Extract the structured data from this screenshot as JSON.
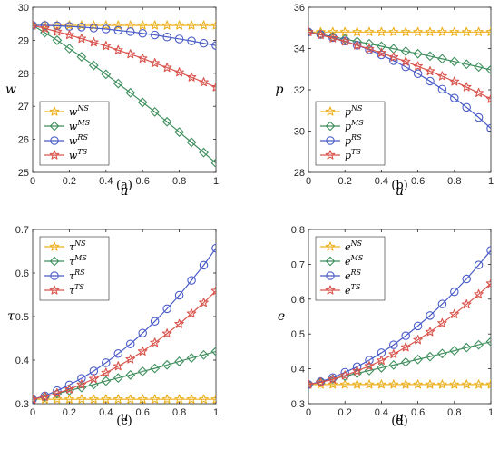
{
  "chart_data": [
    {
      "type": "line",
      "caption": "(a)",
      "xlabel": "u",
      "ylabel": "w",
      "xlim": [
        0,
        1
      ],
      "ylim": [
        25,
        30
      ],
      "xticks": [
        "0",
        "0.2",
        "0.4",
        "0.6",
        "0.8",
        "1"
      ],
      "yticks": [
        "25",
        "26",
        "27",
        "28",
        "29",
        "30"
      ],
      "legend": "bottom-left",
      "x": [
        0,
        0.0667,
        0.1333,
        0.2,
        0.2667,
        0.3333,
        0.4,
        0.4667,
        0.5333,
        0.6,
        0.6667,
        0.7333,
        0.8,
        0.8667,
        0.9333,
        1
      ],
      "series": [
        {
          "name": "w",
          "sup": "NS",
          "color": "#EDB120",
          "marker": "star",
          "values": [
            29.45,
            29.45,
            29.45,
            29.45,
            29.45,
            29.45,
            29.45,
            29.45,
            29.45,
            29.45,
            29.45,
            29.45,
            29.45,
            29.45,
            29.45,
            29.45
          ]
        },
        {
          "name": "w",
          "sup": "MS",
          "color": "#3F8F5E",
          "marker": "diamond",
          "values": [
            29.45,
            29.23,
            29.0,
            28.75,
            28.5,
            28.24,
            27.97,
            27.69,
            27.41,
            27.12,
            26.83,
            26.53,
            26.22,
            25.91,
            25.6,
            25.28
          ]
        },
        {
          "name": "w",
          "sup": "RS",
          "color": "#4A5CC7",
          "marker": "circle",
          "values": [
            29.45,
            29.45,
            29.44,
            29.42,
            29.4,
            29.37,
            29.34,
            29.3,
            29.26,
            29.21,
            29.16,
            29.1,
            29.04,
            28.98,
            28.91,
            28.84
          ]
        },
        {
          "name": "w",
          "sup": "TS",
          "color": "#D9544D",
          "marker": "star",
          "values": [
            29.45,
            29.36,
            29.26,
            29.16,
            29.05,
            28.94,
            28.83,
            28.7,
            28.58,
            28.45,
            28.31,
            28.17,
            28.03,
            27.88,
            27.73,
            27.58
          ]
        }
      ]
    },
    {
      "type": "line",
      "caption": "(b)",
      "xlabel": "u",
      "ylabel": "p",
      "xlim": [
        0,
        1
      ],
      "ylim": [
        28,
        36
      ],
      "xticks": [
        "0",
        "0.2",
        "0.4",
        "0.6",
        "0.8",
        "1"
      ],
      "yticks": [
        "28",
        "30",
        "32",
        "34",
        "36"
      ],
      "legend": "bottom-left",
      "x": [
        0,
        0.0667,
        0.1333,
        0.2,
        0.2667,
        0.3333,
        0.4,
        0.4667,
        0.5333,
        0.6,
        0.6667,
        0.7333,
        0.8,
        0.8667,
        0.9333,
        1
      ],
      "series": [
        {
          "name": "p",
          "sup": "NS",
          "color": "#EDB120",
          "marker": "star",
          "values": [
            34.8,
            34.8,
            34.8,
            34.8,
            34.8,
            34.8,
            34.8,
            34.8,
            34.8,
            34.8,
            34.8,
            34.8,
            34.8,
            34.8,
            34.8,
            34.8
          ]
        },
        {
          "name": "p",
          "sup": "MS",
          "color": "#3F8F5E",
          "marker": "diamond",
          "values": [
            34.8,
            34.69,
            34.57,
            34.46,
            34.34,
            34.23,
            34.11,
            33.99,
            33.87,
            33.75,
            33.63,
            33.5,
            33.37,
            33.24,
            33.11,
            32.97
          ]
        },
        {
          "name": "p",
          "sup": "RS",
          "color": "#4A5CC7",
          "marker": "circle",
          "values": [
            34.8,
            34.68,
            34.53,
            34.36,
            34.16,
            33.94,
            33.69,
            33.41,
            33.11,
            32.78,
            32.42,
            32.03,
            31.6,
            31.15,
            30.66,
            30.13
          ]
        },
        {
          "name": "p",
          "sup": "TS",
          "color": "#D9544D",
          "marker": "star",
          "values": [
            34.8,
            34.66,
            34.5,
            34.34,
            34.16,
            33.98,
            33.79,
            33.58,
            33.37,
            33.14,
            32.9,
            32.66,
            32.4,
            32.13,
            31.85,
            31.56
          ]
        }
      ]
    },
    {
      "type": "line",
      "caption": "(c)",
      "xlabel": "u",
      "ylabel": "τ",
      "xlim": [
        0,
        1
      ],
      "ylim": [
        0.3,
        0.7
      ],
      "xticks": [
        "0",
        "0.2",
        "0.4",
        "0.6",
        "0.8",
        "1"
      ],
      "yticks": [
        "0.3",
        "0.4",
        "0.5",
        "0.6",
        "0.7"
      ],
      "legend": "top-left",
      "x": [
        0,
        0.0667,
        0.1333,
        0.2,
        0.2667,
        0.3333,
        0.4,
        0.4667,
        0.5333,
        0.6,
        0.6667,
        0.7333,
        0.8,
        0.8667,
        0.9333,
        1
      ],
      "series": [
        {
          "name": "τ",
          "sup": "NS",
          "color": "#EDB120",
          "marker": "star",
          "values": [
            0.31,
            0.31,
            0.31,
            0.31,
            0.31,
            0.31,
            0.31,
            0.31,
            0.31,
            0.31,
            0.31,
            0.31,
            0.31,
            0.31,
            0.31,
            0.31
          ]
        },
        {
          "name": "τ",
          "sup": "MS",
          "color": "#3F8F5E",
          "marker": "diamond",
          "values": [
            0.31,
            0.316,
            0.323,
            0.33,
            0.337,
            0.344,
            0.352,
            0.359,
            0.366,
            0.374,
            0.381,
            0.389,
            0.397,
            0.405,
            0.412,
            0.42
          ]
        },
        {
          "name": "τ",
          "sup": "RS",
          "color": "#4A5CC7",
          "marker": "circle",
          "values": [
            0.31,
            0.318,
            0.33,
            0.343,
            0.358,
            0.375,
            0.394,
            0.415,
            0.437,
            0.462,
            0.489,
            0.518,
            0.549,
            0.583,
            0.618,
            0.657
          ]
        },
        {
          "name": "τ",
          "sup": "TS",
          "color": "#D9544D",
          "marker": "star",
          "values": [
            0.31,
            0.316,
            0.324,
            0.333,
            0.344,
            0.357,
            0.371,
            0.386,
            0.402,
            0.42,
            0.44,
            0.461,
            0.483,
            0.507,
            0.532,
            0.559
          ]
        }
      ]
    },
    {
      "type": "line",
      "caption": "(d)",
      "xlabel": "u",
      "ylabel": "e",
      "xlim": [
        0,
        1
      ],
      "ylim": [
        0.3,
        0.8
      ],
      "xticks": [
        "0",
        "0.2",
        "0.4",
        "0.6",
        "0.8",
        "1"
      ],
      "yticks": [
        "0.3",
        "0.4",
        "0.5",
        "0.6",
        "0.7",
        "0.8"
      ],
      "legend": "top-left",
      "x": [
        0,
        0.0667,
        0.1333,
        0.2,
        0.2667,
        0.3333,
        0.4,
        0.4667,
        0.5333,
        0.6,
        0.6667,
        0.7333,
        0.8,
        0.8667,
        0.9333,
        1
      ],
      "series": [
        {
          "name": "e",
          "sup": "NS",
          "color": "#EDB120",
          "marker": "star",
          "values": [
            0.355,
            0.355,
            0.355,
            0.355,
            0.355,
            0.355,
            0.355,
            0.355,
            0.355,
            0.355,
            0.355,
            0.355,
            0.355,
            0.355,
            0.355,
            0.355
          ]
        },
        {
          "name": "e",
          "sup": "MS",
          "color": "#3F8F5E",
          "marker": "diamond",
          "values": [
            0.355,
            0.363,
            0.371,
            0.379,
            0.387,
            0.395,
            0.403,
            0.411,
            0.419,
            0.427,
            0.435,
            0.444,
            0.452,
            0.461,
            0.469,
            0.478
          ]
        },
        {
          "name": "e",
          "sup": "RS",
          "color": "#4A5CC7",
          "marker": "circle",
          "values": [
            0.355,
            0.363,
            0.375,
            0.39,
            0.406,
            0.425,
            0.446,
            0.469,
            0.495,
            0.523,
            0.553,
            0.586,
            0.621,
            0.658,
            0.698,
            0.74
          ]
        },
        {
          "name": "e",
          "sup": "TS",
          "color": "#D9544D",
          "marker": "star",
          "values": [
            0.355,
            0.361,
            0.37,
            0.381,
            0.394,
            0.408,
            0.424,
            0.442,
            0.462,
            0.483,
            0.506,
            0.531,
            0.557,
            0.585,
            0.614,
            0.645
          ]
        }
      ]
    }
  ]
}
